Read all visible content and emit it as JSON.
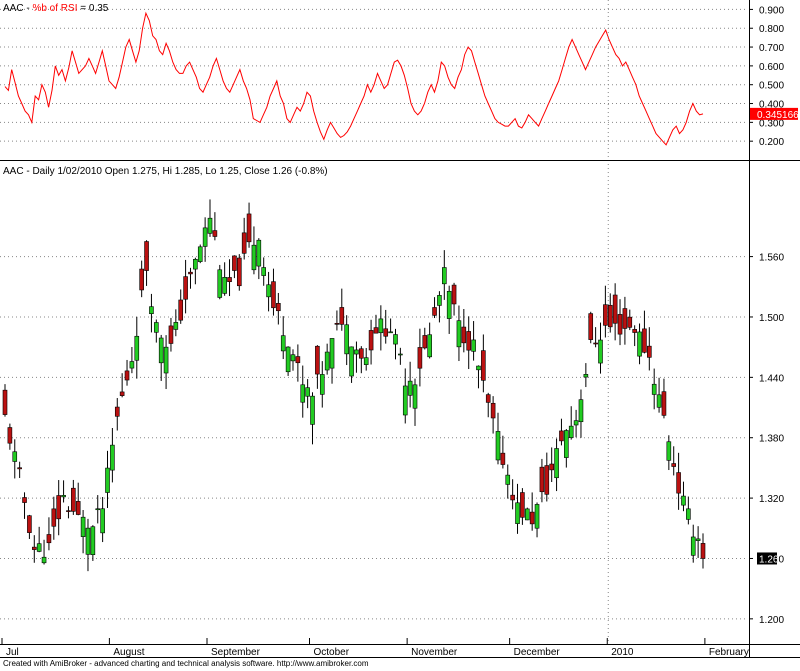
{
  "colors": {
    "up": "#22cc22",
    "down": "#bb1111",
    "rsi_line": "#ff0000",
    "grid": "#888888",
    "title_red": "#ff0000"
  },
  "chart_data": [
    {
      "type": "line",
      "title_prefix": "AAC - ",
      "title_indicator": "%b of RSI",
      "title_value": " = 0.35",
      "ylim": [
        0.1,
        0.95
      ],
      "y_ticks": [
        "0.900",
        "0.800",
        "0.700",
        "0.600",
        "0.500",
        "0.400",
        "0.300",
        "0.200"
      ],
      "last_value_label": "0.345166",
      "series": [
        {
          "values": [
            0.49,
            0.47,
            0.58,
            0.51,
            0.44,
            0.4,
            0.36,
            0.34,
            0.3,
            0.44,
            0.42,
            0.5,
            0.46,
            0.38,
            0.47,
            0.6,
            0.55,
            0.58,
            0.52,
            0.59,
            0.68,
            0.62,
            0.56,
            0.58,
            0.6,
            0.64,
            0.6,
            0.56,
            0.62,
            0.68,
            0.6,
            0.52,
            0.5,
            0.48,
            0.54,
            0.62,
            0.7,
            0.74,
            0.68,
            0.62,
            0.68,
            0.8,
            0.88,
            0.84,
            0.76,
            0.74,
            0.68,
            0.66,
            0.72,
            0.68,
            0.62,
            0.58,
            0.56,
            0.56,
            0.6,
            0.62,
            0.58,
            0.54,
            0.48,
            0.46,
            0.5,
            0.54,
            0.6,
            0.64,
            0.58,
            0.52,
            0.48,
            0.46,
            0.5,
            0.54,
            0.58,
            0.52,
            0.48,
            0.42,
            0.32,
            0.31,
            0.3,
            0.34,
            0.38,
            0.44,
            0.48,
            0.52,
            0.44,
            0.4,
            0.32,
            0.3,
            0.34,
            0.38,
            0.36,
            0.4,
            0.46,
            0.44,
            0.36,
            0.3,
            0.25,
            0.21,
            0.26,
            0.3,
            0.27,
            0.24,
            0.22,
            0.23,
            0.25,
            0.28,
            0.32,
            0.36,
            0.4,
            0.44,
            0.5,
            0.46,
            0.5,
            0.56,
            0.52,
            0.48,
            0.5,
            0.56,
            0.62,
            0.63,
            0.6,
            0.55,
            0.48,
            0.4,
            0.36,
            0.34,
            0.36,
            0.4,
            0.46,
            0.5,
            0.46,
            0.52,
            0.62,
            0.6,
            0.54,
            0.5,
            0.48,
            0.54,
            0.58,
            0.66,
            0.7,
            0.68,
            0.62,
            0.56,
            0.5,
            0.44,
            0.4,
            0.36,
            0.32,
            0.3,
            0.29,
            0.28,
            0.28,
            0.3,
            0.32,
            0.28,
            0.27,
            0.3,
            0.34,
            0.32,
            0.3,
            0.28,
            0.32,
            0.36,
            0.4,
            0.44,
            0.48,
            0.52,
            0.58,
            0.64,
            0.7,
            0.74,
            0.7,
            0.66,
            0.62,
            0.58,
            0.62,
            0.66,
            0.7,
            0.73,
            0.76,
            0.79,
            0.74,
            0.7,
            0.66,
            0.64,
            0.6,
            0.62,
            0.58,
            0.54,
            0.5,
            0.44,
            0.4,
            0.36,
            0.32,
            0.28,
            0.24,
            0.22,
            0.2,
            0.18,
            0.22,
            0.26,
            0.28,
            0.24,
            0.26,
            0.3,
            0.36,
            0.4,
            0.36,
            0.34,
            0.345
          ]
        }
      ]
    },
    {
      "type": "candlestick",
      "title": "AAC - Daily 1/02/2010 Open 1.275, Hi 1.285, Lo 1.25, Close 1.26 (-0.8%)",
      "ylim": [
        1.175,
        1.655
      ],
      "y_ticks": [
        "1.560",
        "1.500",
        "1.440",
        "1.380",
        "1.320",
        "1.260",
        "1.200"
      ],
      "last_value_label": "1.26",
      "x_labels": [
        {
          "label": "Jul",
          "index": 0
        },
        {
          "label": "August",
          "index": 22
        },
        {
          "label": "September",
          "index": 42
        },
        {
          "label": "October",
          "index": 63
        },
        {
          "label": "November",
          "index": 83
        },
        {
          "label": "December",
          "index": 104
        },
        {
          "label": "2010",
          "index": 124
        },
        {
          "label": "February",
          "index": 144
        }
      ],
      "separator_index": 124,
      "key_points": [
        [
          0,
          1.4
        ],
        [
          3,
          1.34
        ],
        [
          6,
          1.27
        ],
        [
          9,
          1.27
        ],
        [
          12,
          1.32
        ],
        [
          15,
          1.3
        ],
        [
          18,
          1.29
        ],
        [
          20,
          1.31
        ],
        [
          23,
          1.4
        ],
        [
          26,
          1.46
        ],
        [
          29,
          1.55
        ],
        [
          31,
          1.49
        ],
        [
          34,
          1.47
        ],
        [
          37,
          1.52
        ],
        [
          40,
          1.57
        ],
        [
          42,
          1.6
        ],
        [
          45,
          1.53
        ],
        [
          48,
          1.54
        ],
        [
          50,
          1.57
        ],
        [
          52,
          1.58
        ],
        [
          55,
          1.51
        ],
        [
          58,
          1.48
        ],
        [
          61,
          1.43
        ],
        [
          63,
          1.42
        ],
        [
          66,
          1.46
        ],
        [
          69,
          1.5
        ],
        [
          72,
          1.47
        ],
        [
          74,
          1.46
        ],
        [
          76,
          1.49
        ],
        [
          79,
          1.49
        ],
        [
          82,
          1.44
        ],
        [
          84,
          1.44
        ],
        [
          87,
          1.48
        ],
        [
          90,
          1.54
        ],
        [
          93,
          1.49
        ],
        [
          96,
          1.47
        ],
        [
          99,
          1.41
        ],
        [
          102,
          1.36
        ],
        [
          105,
          1.31
        ],
        [
          108,
          1.3
        ],
        [
          111,
          1.33
        ],
        [
          114,
          1.38
        ],
        [
          117,
          1.4
        ],
        [
          120,
          1.47
        ],
        [
          123,
          1.49
        ],
        [
          126,
          1.49
        ],
        [
          129,
          1.49
        ],
        [
          132,
          1.46
        ],
        [
          134,
          1.42
        ],
        [
          136,
          1.38
        ],
        [
          138,
          1.33
        ],
        [
          140,
          1.3
        ],
        [
          142,
          1.28
        ],
        [
          143,
          1.26
        ]
      ],
      "last": {
        "open": 1.275,
        "high": 1.285,
        "low": 1.25,
        "close": 1.26
      }
    }
  ],
  "footer": "Created with AmiBroker - advanced charting and technical analysis software. http://www.amibroker.com"
}
